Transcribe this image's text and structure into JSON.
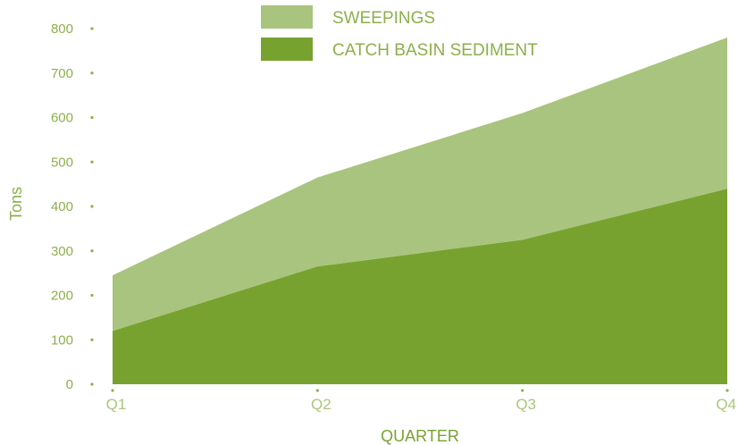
{
  "chart_data": {
    "type": "area",
    "stacked": true,
    "categories": [
      "Q1",
      "Q2",
      "Q3",
      "Q4"
    ],
    "series": [
      {
        "name": "CATCH BASIN SEDIMENT",
        "values": [
          120,
          265,
          325,
          440
        ],
        "color": "#78a22f"
      },
      {
        "name": "SWEEPINGS",
        "values": [
          125,
          200,
          285,
          340
        ],
        "color": "#a9c47e"
      }
    ],
    "totals": [
      245,
      465,
      610,
      780
    ],
    "xlabel": "QUARTER",
    "ylabel": "Tons",
    "ylim": [
      0,
      800
    ],
    "yticks": [
      0,
      100,
      200,
      300,
      400,
      500,
      600,
      700,
      800
    ],
    "grid": false,
    "legend_position": "top-center",
    "legend_order": [
      "SWEEPINGS",
      "CATCH BASIN SEDIMENT"
    ]
  }
}
